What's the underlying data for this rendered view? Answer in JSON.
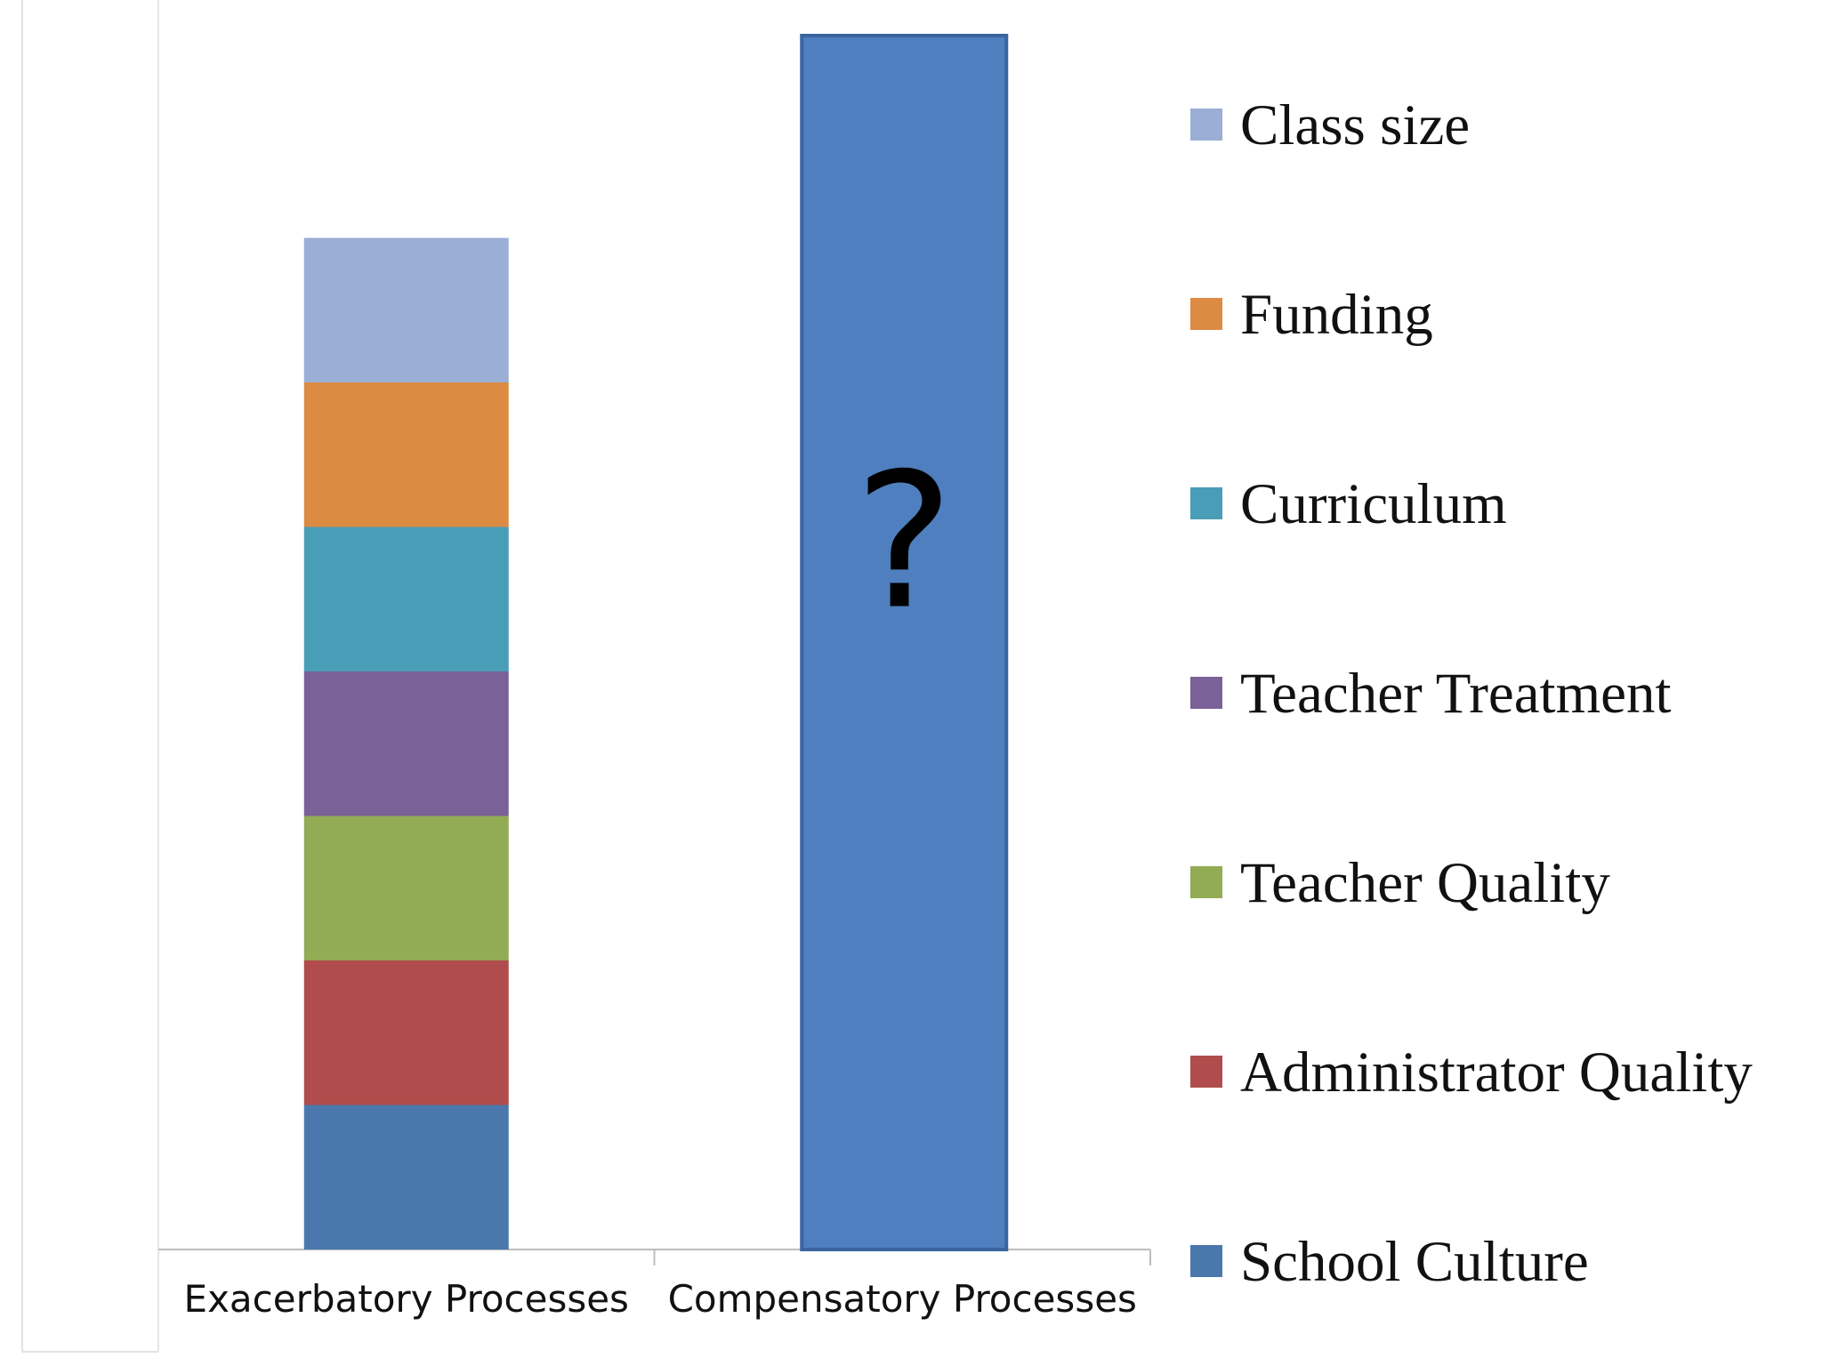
{
  "chart_data": {
    "type": "bar",
    "stacked": true,
    "title": "",
    "xlabel": "",
    "ylabel": "",
    "grid": false,
    "legend_position": "right",
    "categories": [
      "Exacerbatory Processes",
      "Compensatory Processes"
    ],
    "series": [
      {
        "name": "School Culture",
        "color": "#4a78ad",
        "values": [
          1,
          0
        ]
      },
      {
        "name": "Administrator Quality",
        "color": "#b04c4b",
        "values": [
          1,
          0
        ]
      },
      {
        "name": "Teacher Quality",
        "color": "#92ab55",
        "values": [
          1,
          0
        ]
      },
      {
        "name": "Teacher Treatment",
        "color": "#7a6198",
        "values": [
          1,
          0
        ]
      },
      {
        "name": "Curriculum",
        "color": "#4a9db6",
        "values": [
          1,
          0
        ]
      },
      {
        "name": "Funding",
        "color": "#dc8b43",
        "values": [
          1,
          0
        ]
      },
      {
        "name": "Class size",
        "color": "#9aaed6",
        "values": [
          1,
          0
        ]
      }
    ],
    "unknown_bar": {
      "category": "Compensatory Processes",
      "value": 8.4,
      "color": "#4f7fbe",
      "border_color": "#3a64a0",
      "label": "?"
    },
    "ylim": [
      0,
      8.4
    ]
  }
}
